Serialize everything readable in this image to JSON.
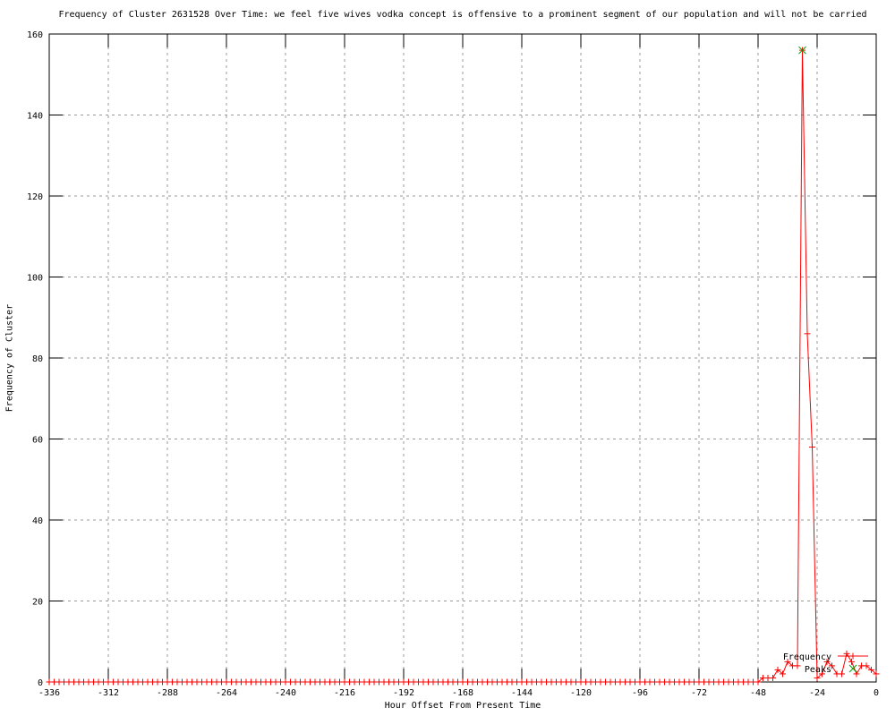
{
  "chart_data": {
    "type": "line",
    "title": "Frequency of Cluster 2631528 Over Time: we feel five wives vodka concept is offensive to a prominent segment of our population and will not be carried",
    "xlabel": "Hour Offset From Present Time",
    "ylabel": "Frequency of Cluster",
    "xlim": [
      -336,
      0
    ],
    "ylim": [
      0,
      160
    ],
    "xticks": [
      -336,
      -312,
      -288,
      -264,
      -240,
      -216,
      -192,
      -168,
      -144,
      -120,
      -96,
      -72,
      -48,
      -24,
      0
    ],
    "yticks": [
      0,
      20,
      40,
      60,
      80,
      100,
      120,
      140,
      160
    ],
    "grid": true,
    "legend_position": "inside-bottom-right",
    "series": [
      {
        "name": "Frequency",
        "style": "linespoints",
        "marker": "plus",
        "color": "#ff0000",
        "x": [
          -336,
          -334,
          -332,
          -330,
          -328,
          -326,
          -324,
          -322,
          -320,
          -318,
          -316,
          -314,
          -312,
          -310,
          -308,
          -306,
          -304,
          -302,
          -300,
          -298,
          -296,
          -294,
          -292,
          -290,
          -288,
          -286,
          -284,
          -282,
          -280,
          -278,
          -276,
          -274,
          -272,
          -270,
          -268,
          -266,
          -264,
          -262,
          -260,
          -258,
          -256,
          -254,
          -252,
          -250,
          -248,
          -246,
          -244,
          -242,
          -240,
          -238,
          -236,
          -234,
          -232,
          -230,
          -228,
          -226,
          -224,
          -222,
          -220,
          -218,
          -216,
          -214,
          -212,
          -210,
          -208,
          -206,
          -204,
          -202,
          -200,
          -198,
          -196,
          -194,
          -192,
          -190,
          -188,
          -186,
          -184,
          -182,
          -180,
          -178,
          -176,
          -174,
          -172,
          -170,
          -168,
          -166,
          -164,
          -162,
          -160,
          -158,
          -156,
          -154,
          -152,
          -150,
          -148,
          -146,
          -144,
          -142,
          -140,
          -138,
          -136,
          -134,
          -132,
          -130,
          -128,
          -126,
          -124,
          -122,
          -120,
          -118,
          -116,
          -114,
          -112,
          -110,
          -108,
          -106,
          -104,
          -102,
          -100,
          -98,
          -96,
          -94,
          -92,
          -90,
          -88,
          -86,
          -84,
          -82,
          -80,
          -78,
          -76,
          -74,
          -72,
          -70,
          -68,
          -66,
          -64,
          -62,
          -60,
          -58,
          -56,
          -54,
          -52,
          -50,
          -48,
          -46,
          -44,
          -42,
          -40,
          -38,
          -36,
          -34,
          -32,
          -30,
          -28,
          -26,
          -24,
          -22,
          -20,
          -18,
          -16,
          -14,
          -12,
          -10,
          -8,
          -6,
          -4,
          -2,
          0
        ],
        "y": [
          0,
          0,
          0,
          0,
          0,
          0,
          0,
          0,
          0,
          0,
          0,
          0,
          0,
          0,
          0,
          0,
          0,
          0,
          0,
          0,
          0,
          0,
          0,
          0,
          0,
          0,
          0,
          0,
          0,
          0,
          0,
          0,
          0,
          0,
          0,
          0,
          0,
          0,
          0,
          0,
          0,
          0,
          0,
          0,
          0,
          0,
          0,
          0,
          0,
          0,
          0,
          0,
          0,
          0,
          0,
          0,
          0,
          0,
          0,
          0,
          0,
          0,
          0,
          0,
          0,
          0,
          0,
          0,
          0,
          0,
          0,
          0,
          0,
          0,
          0,
          0,
          0,
          0,
          0,
          0,
          0,
          0,
          0,
          0,
          0,
          0,
          0,
          0,
          0,
          0,
          0,
          0,
          0,
          0,
          0,
          0,
          0,
          0,
          0,
          0,
          0,
          0,
          0,
          0,
          0,
          0,
          0,
          0,
          0,
          0,
          0,
          0,
          0,
          0,
          0,
          0,
          0,
          0,
          0,
          0,
          0,
          0,
          0,
          0,
          0,
          0,
          0,
          0,
          0,
          0,
          0,
          0,
          0,
          0,
          0,
          0,
          0,
          0,
          0,
          0,
          0,
          0,
          0,
          0,
          0,
          1,
          1,
          1,
          3,
          2,
          5,
          4,
          4,
          156,
          86,
          58,
          1,
          2,
          5,
          4,
          2,
          2,
          7,
          5,
          2,
          4,
          4,
          3,
          2
        ]
      },
      {
        "name": "Peaks",
        "style": "points",
        "marker": "cross",
        "color": "#00a000",
        "x": [
          -30
        ],
        "y": [
          156
        ]
      }
    ]
  },
  "colors": {
    "series_frequency": "#ff0000",
    "series_peaks": "#00a000",
    "grid": "#999999",
    "border": "#000000",
    "background": "#ffffff",
    "text": "#000000"
  }
}
